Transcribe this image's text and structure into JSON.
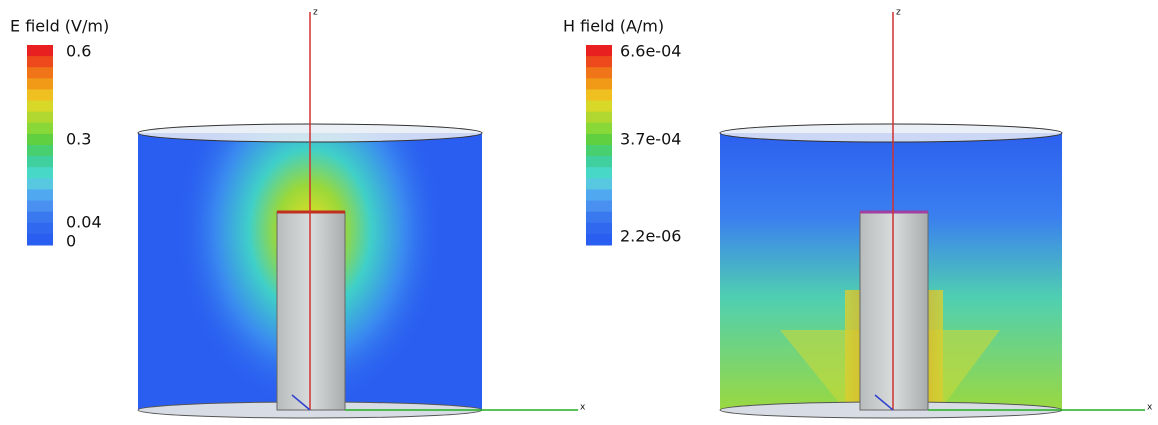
{
  "panels": [
    {
      "title": "E field (V/m)",
      "scale_labels": [
        "0.6",
        "0.3",
        "0.04",
        "0"
      ],
      "axis_labels": [
        "z",
        "x"
      ]
    },
    {
      "title": "H field (A/m)",
      "scale_labels": [
        "6.6e-04",
        "3.7e-04",
        "2.2e-06"
      ],
      "axis_labels": [
        "z",
        "x"
      ]
    }
  ]
}
